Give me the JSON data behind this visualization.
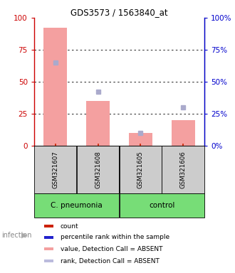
{
  "title": "GDS3573 / 1563840_at",
  "samples": [
    "GSM321607",
    "GSM321608",
    "GSM321605",
    "GSM321606"
  ],
  "pink_values": [
    92,
    35,
    10,
    20
  ],
  "blue_values": [
    65,
    42,
    10,
    30
  ],
  "ylim": [
    0,
    100
  ],
  "yticks": [
    0,
    25,
    50,
    75,
    100
  ],
  "left_axis_color": "#cc0000",
  "right_axis_color": "#0000cc",
  "bar_color_absent": "#f4a0a0",
  "marker_color_absent": "#aaaacc",
  "legend_items": [
    {
      "color": "#cc2200",
      "label": "count"
    },
    {
      "color": "#2222cc",
      "label": "percentile rank within the sample"
    },
    {
      "color": "#f4a0a0",
      "label": "value, Detection Call = ABSENT"
    },
    {
      "color": "#bbbbdd",
      "label": "rank, Detection Call = ABSENT"
    }
  ],
  "group_label_row": [
    {
      "label": "C. pneumonia",
      "color": "#77dd77",
      "samples": [
        0,
        1
      ]
    },
    {
      "label": "control",
      "color": "#77dd77",
      "samples": [
        2,
        3
      ]
    }
  ],
  "sample_box_color": "#cccccc",
  "infection_label": "infection",
  "bar_width": 0.55
}
